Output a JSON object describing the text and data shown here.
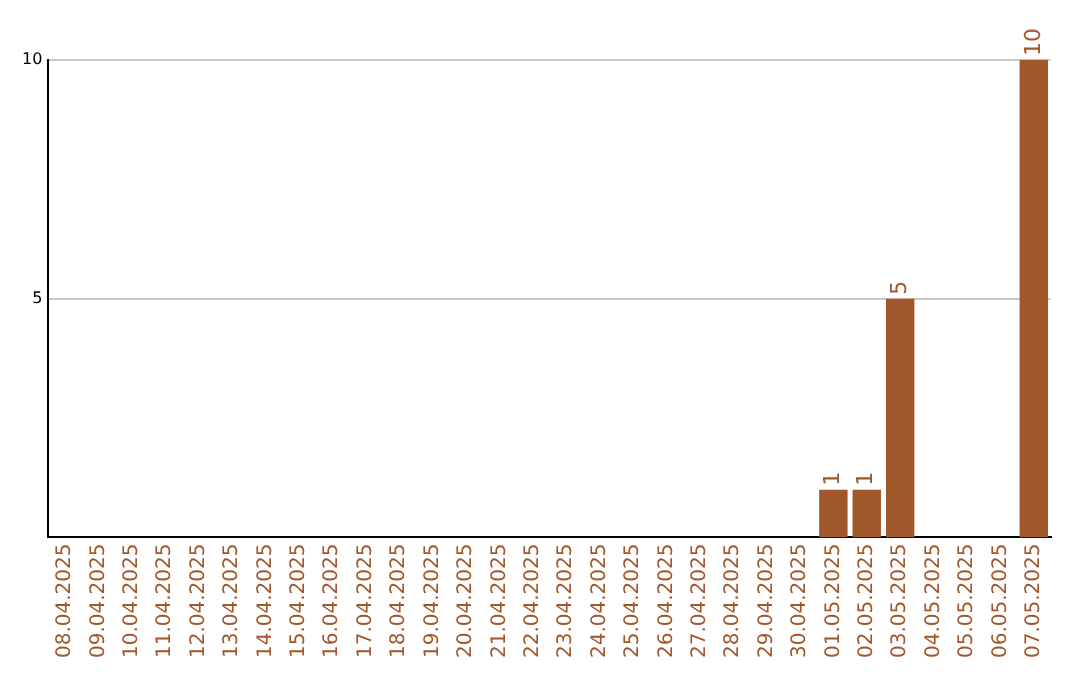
{
  "chart_data": {
    "type": "bar",
    "categories": [
      "08.04.2025",
      "09.04.2025",
      "10.04.2025",
      "11.04.2025",
      "12.04.2025",
      "13.04.2025",
      "14.04.2025",
      "15.04.2025",
      "16.04.2025",
      "17.04.2025",
      "18.04.2025",
      "19.04.2025",
      "20.04.2025",
      "21.04.2025",
      "22.04.2025",
      "23.04.2025",
      "24.04.2025",
      "25.04.2025",
      "26.04.2025",
      "27.04.2025",
      "28.04.2025",
      "29.04.2025",
      "30.04.2025",
      "01.05.2025",
      "02.05.2025",
      "03.05.2025",
      "04.05.2025",
      "05.05.2025",
      "06.05.2025",
      "07.05.2025"
    ],
    "values": [
      0,
      0,
      0,
      0,
      0,
      0,
      0,
      0,
      0,
      0,
      0,
      0,
      0,
      0,
      0,
      0,
      0,
      0,
      0,
      0,
      0,
      0,
      0,
      1,
      1,
      5,
      0,
      0,
      0,
      10
    ],
    "value_labels": [
      null,
      null,
      null,
      null,
      null,
      null,
      null,
      null,
      null,
      null,
      null,
      null,
      null,
      null,
      null,
      null,
      null,
      null,
      null,
      null,
      null,
      null,
      null,
      "1",
      "1",
      "5",
      null,
      null,
      null,
      "10"
    ],
    "color": "#a0582a",
    "ylim": [
      0,
      10
    ],
    "yticks": [
      5,
      10
    ],
    "grid": "y"
  }
}
